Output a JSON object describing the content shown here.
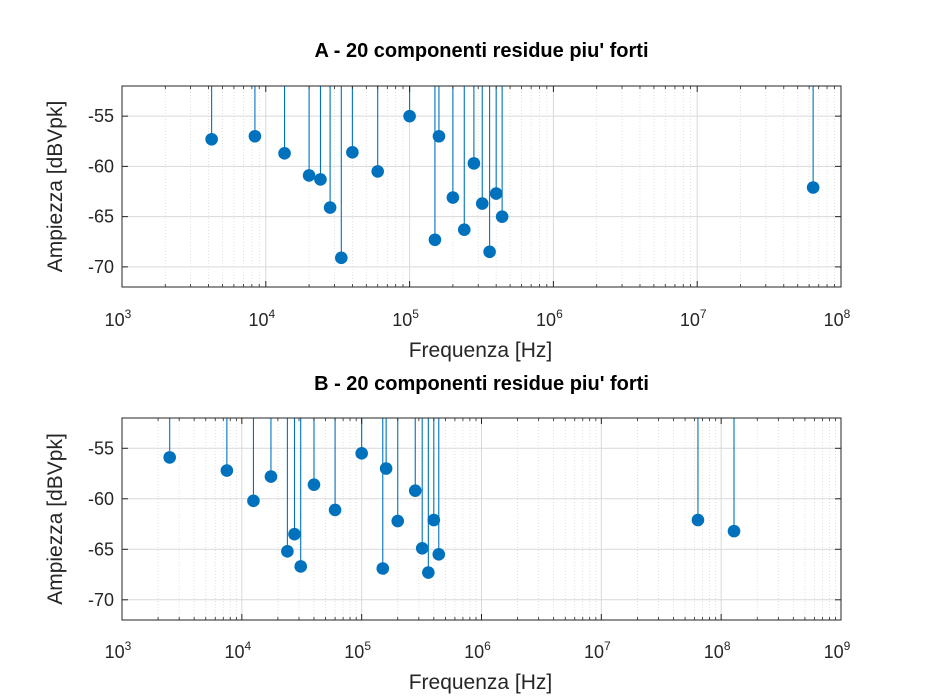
{
  "colors": {
    "stem": "#0072BD",
    "grid": "#d9d9d9",
    "axis": "#262626"
  },
  "chart_data": [
    {
      "type": "stem",
      "title": "A - 20 componenti residue piu' forti",
      "xlabel": "Frequenza [Hz]",
      "ylabel": "Ampiezza [dBVpk]",
      "xscale": "log",
      "xlim": [
        1000,
        100000000
      ],
      "ylim": [
        -72,
        -52
      ],
      "grid": true,
      "x_ticks": [
        {
          "base": "10",
          "exp": "3"
        },
        {
          "base": "10",
          "exp": "4"
        },
        {
          "base": "10",
          "exp": "5"
        },
        {
          "base": "10",
          "exp": "6"
        },
        {
          "base": "10",
          "exp": "7"
        },
        {
          "base": "10",
          "exp": "8"
        }
      ],
      "y_ticks": [
        "-55",
        "-60",
        "-65",
        "-70"
      ],
      "x": [
        4200,
        8400,
        13500,
        20000,
        24000,
        28000,
        33500,
        40000,
        60000,
        100000,
        150000,
        160000,
        200000,
        240000,
        280000,
        320000,
        360000,
        400000,
        440000,
        64000000
      ],
      "y": [
        -57.3,
        -57.0,
        -58.7,
        -60.9,
        -61.3,
        -64.1,
        -69.1,
        -58.6,
        -60.5,
        -55.0,
        -67.3,
        -57.0,
        -63.1,
        -66.3,
        -59.7,
        -63.7,
        -68.5,
        -62.7,
        -65.0,
        -62.1
      ]
    },
    {
      "type": "stem",
      "title": "B - 20 componenti residue piu' forti",
      "xlabel": "Frequenza [Hz]",
      "ylabel": "Ampiezza [dBVpk]",
      "xscale": "log",
      "xlim": [
        1000,
        1000000000
      ],
      "ylim": [
        -72,
        -52
      ],
      "grid": true,
      "x_ticks": [
        {
          "base": "10",
          "exp": "3"
        },
        {
          "base": "10",
          "exp": "4"
        },
        {
          "base": "10",
          "exp": "5"
        },
        {
          "base": "10",
          "exp": "6"
        },
        {
          "base": "10",
          "exp": "7"
        },
        {
          "base": "10",
          "exp": "8"
        },
        {
          "base": "10",
          "exp": "9"
        }
      ],
      "y_ticks": [
        "-55",
        "-60",
        "-65",
        "-70"
      ],
      "x": [
        2500,
        7500,
        12500,
        17500,
        24000,
        27500,
        31000,
        40000,
        60000,
        100000,
        150000,
        160000,
        200000,
        280000,
        320000,
        360000,
        400000,
        440000,
        64000000,
        128000000
      ],
      "y": [
        -55.9,
        -57.2,
        -60.2,
        -57.8,
        -65.2,
        -63.5,
        -66.7,
        -58.6,
        -61.1,
        -55.5,
        -66.9,
        -57.0,
        -62.2,
        -59.2,
        -64.9,
        -67.3,
        -62.1,
        -65.5,
        -62.1,
        -63.2
      ]
    }
  ]
}
